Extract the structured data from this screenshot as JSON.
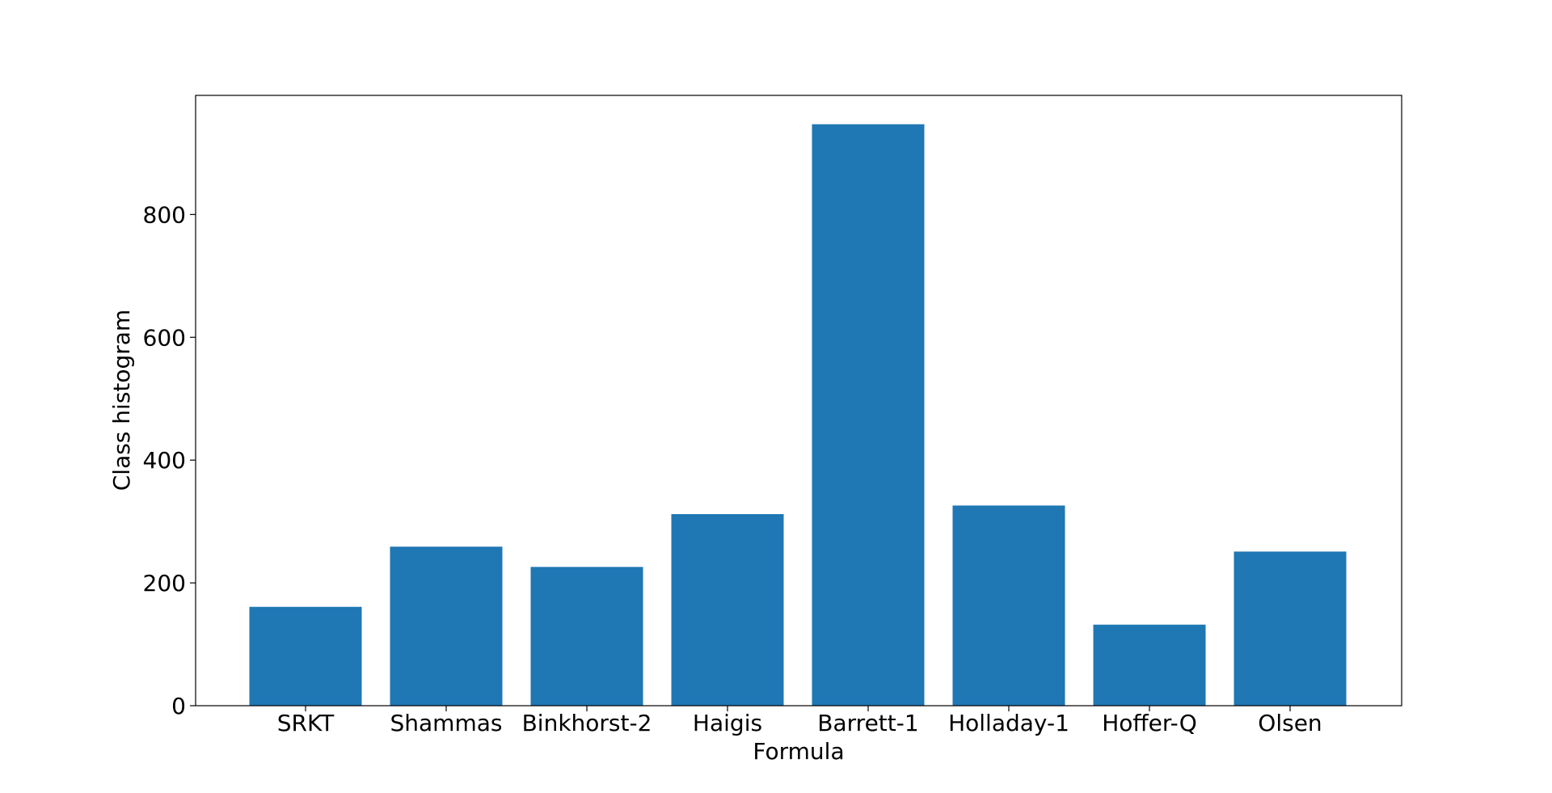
{
  "chart_data": {
    "type": "bar",
    "categories": [
      "SRKT",
      "Shammas",
      "Binkhorst-2",
      "Haigis",
      "Barrett-1",
      "Holladay-1",
      "Hoffer-Q",
      "Olsen"
    ],
    "values": [
      161,
      259,
      226,
      312,
      947,
      326,
      132,
      251
    ],
    "title": "",
    "xlabel": "Formula",
    "ylabel": "Class histogram",
    "ylim": [
      0,
      994
    ],
    "yticks": [
      0,
      200,
      400,
      600,
      800
    ],
    "grid": false,
    "bar_color": "#1f77b4"
  }
}
